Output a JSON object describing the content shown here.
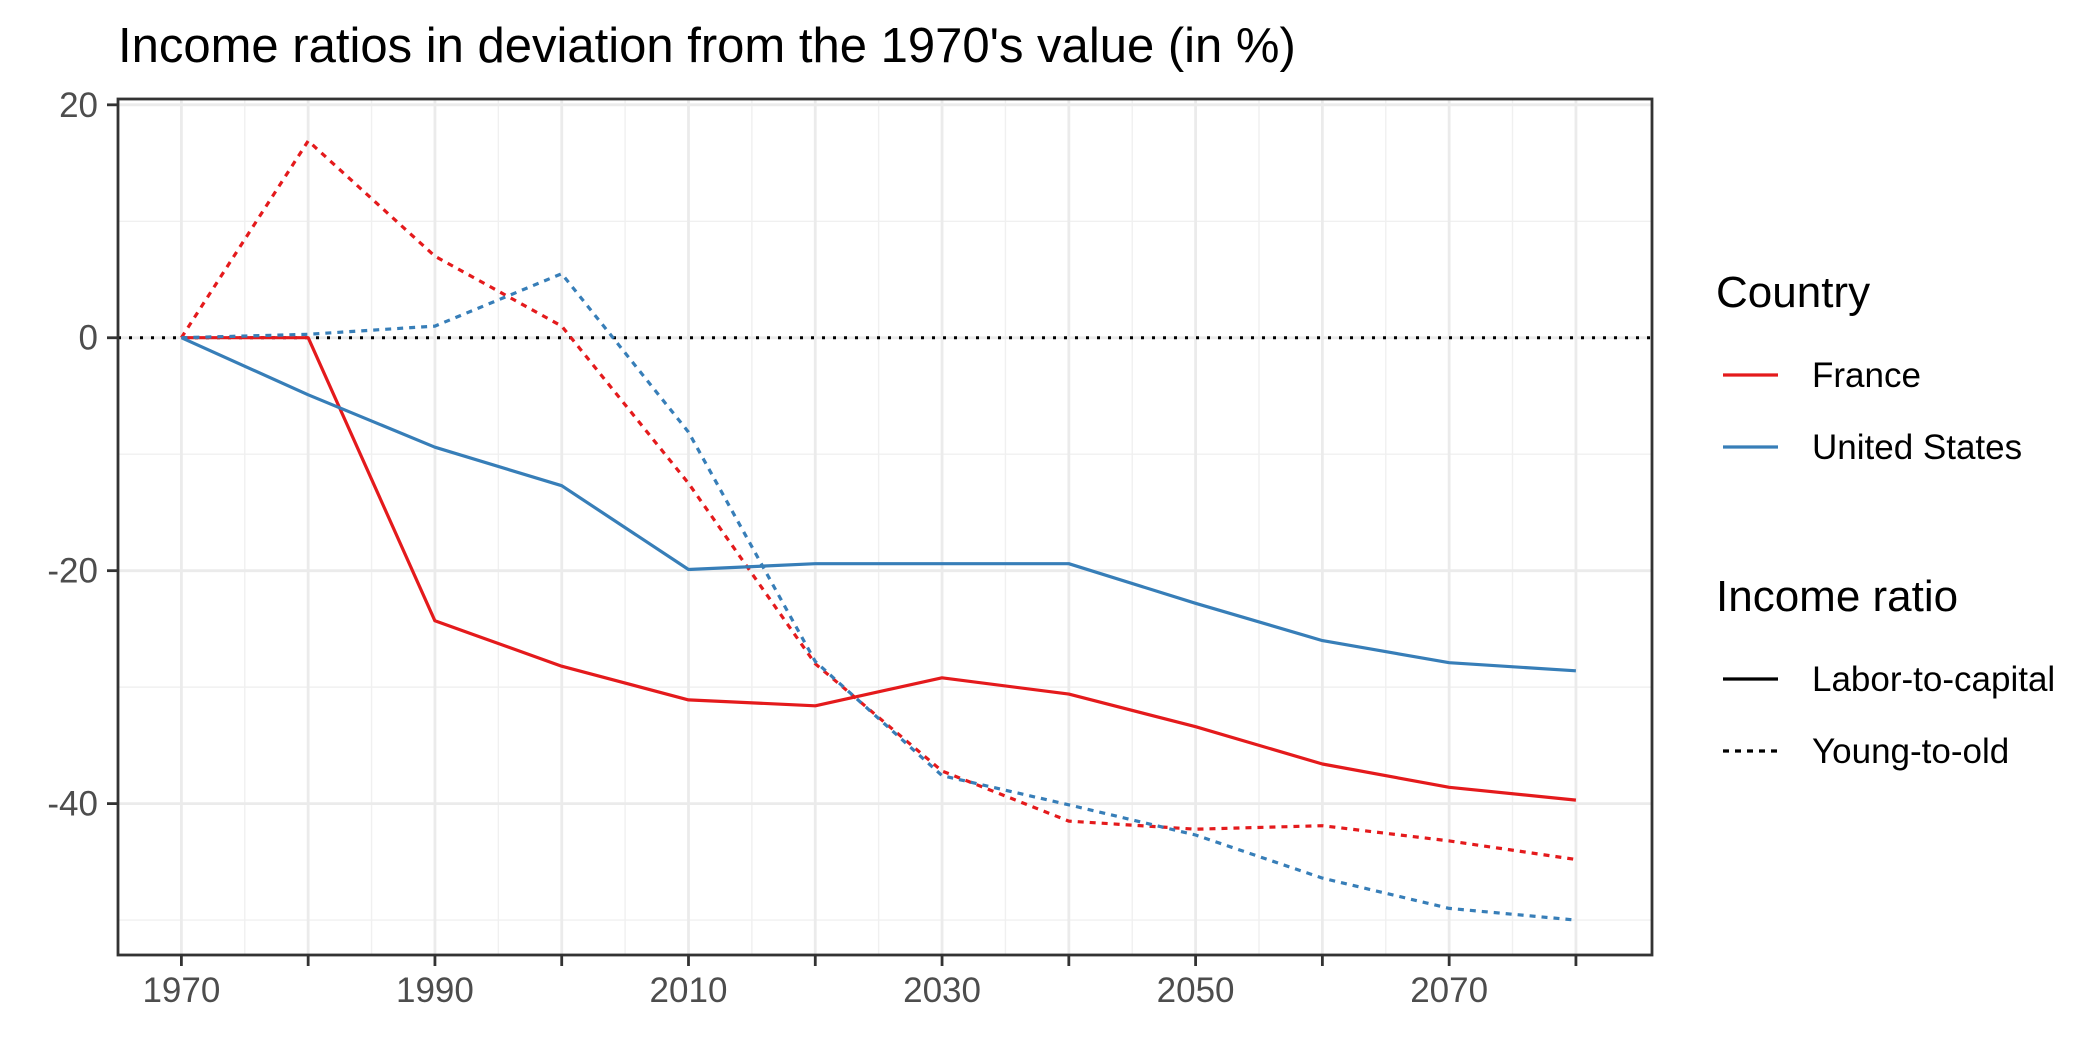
{
  "chart_data": {
    "type": "line",
    "title": "Income ratios in deviation from the 1970's value (in %)",
    "xlabel": "",
    "ylabel": "",
    "xlim": [
      1965,
      2086
    ],
    "ylim": [
      -53,
      20.5
    ],
    "x_ticks": [
      1970,
      1990,
      2010,
      2030,
      2050,
      2070
    ],
    "x_tick_marks": [
      1970,
      1980,
      1990,
      2000,
      2010,
      2020,
      2030,
      2040,
      2050,
      2060,
      2070,
      2080
    ],
    "x_tick_labels": [
      "1970",
      "1990",
      "2010",
      "2030",
      "2050",
      "2070"
    ],
    "y_ticks": [
      20,
      0,
      -20,
      -40
    ],
    "y_tick_labels": [
      "20",
      "0",
      "-20",
      "-40"
    ],
    "reference_line": {
      "y": 0,
      "style": "dotted"
    },
    "grid": true,
    "x": [
      1970,
      1980,
      1990,
      2000,
      2010,
      2020,
      2030,
      2040,
      2050,
      2060,
      2070,
      2080
    ],
    "series": [
      {
        "country": "France",
        "ratio": "Labor-to-capital",
        "color": "#E41A1C",
        "dash": "solid",
        "values": [
          0,
          0,
          -24.3,
          -28.2,
          -31.1,
          -31.6,
          -29.2,
          -30.6,
          -33.4,
          -36.6,
          -38.6,
          -39.7
        ]
      },
      {
        "country": "France",
        "ratio": "Young-to-old",
        "color": "#E41A1C",
        "dash": "dotted",
        "values": [
          0,
          16.9,
          7.0,
          1.0,
          -12.5,
          -28.0,
          -37.2,
          -41.5,
          -42.2,
          -41.9,
          -43.2,
          -44.8
        ]
      },
      {
        "country": "United States",
        "ratio": "Labor-to-capital",
        "color": "#377EB8",
        "dash": "solid",
        "values": [
          0,
          -4.9,
          -9.4,
          -12.7,
          -19.9,
          -19.4,
          -19.4,
          -19.4,
          -22.8,
          -26.0,
          -27.9,
          -28.6
        ]
      },
      {
        "country": "United States",
        "ratio": "Young-to-old",
        "color": "#377EB8",
        "dash": "dotted",
        "values": [
          0,
          0.3,
          1.0,
          5.5,
          -8.1,
          -27.8,
          -37.6,
          -40.1,
          -42.7,
          -46.4,
          -49.0,
          -50.0
        ]
      }
    ],
    "legend": {
      "position": "right",
      "country_title": "Country",
      "country_items": [
        {
          "label": "France",
          "color": "#E41A1C"
        },
        {
          "label": "United States",
          "color": "#377EB8"
        }
      ],
      "ratio_title": "Income ratio",
      "ratio_items": [
        {
          "label": "Labor-to-capital",
          "dash": "solid"
        },
        {
          "label": "Young-to-old",
          "dash": "dotted"
        }
      ]
    }
  }
}
